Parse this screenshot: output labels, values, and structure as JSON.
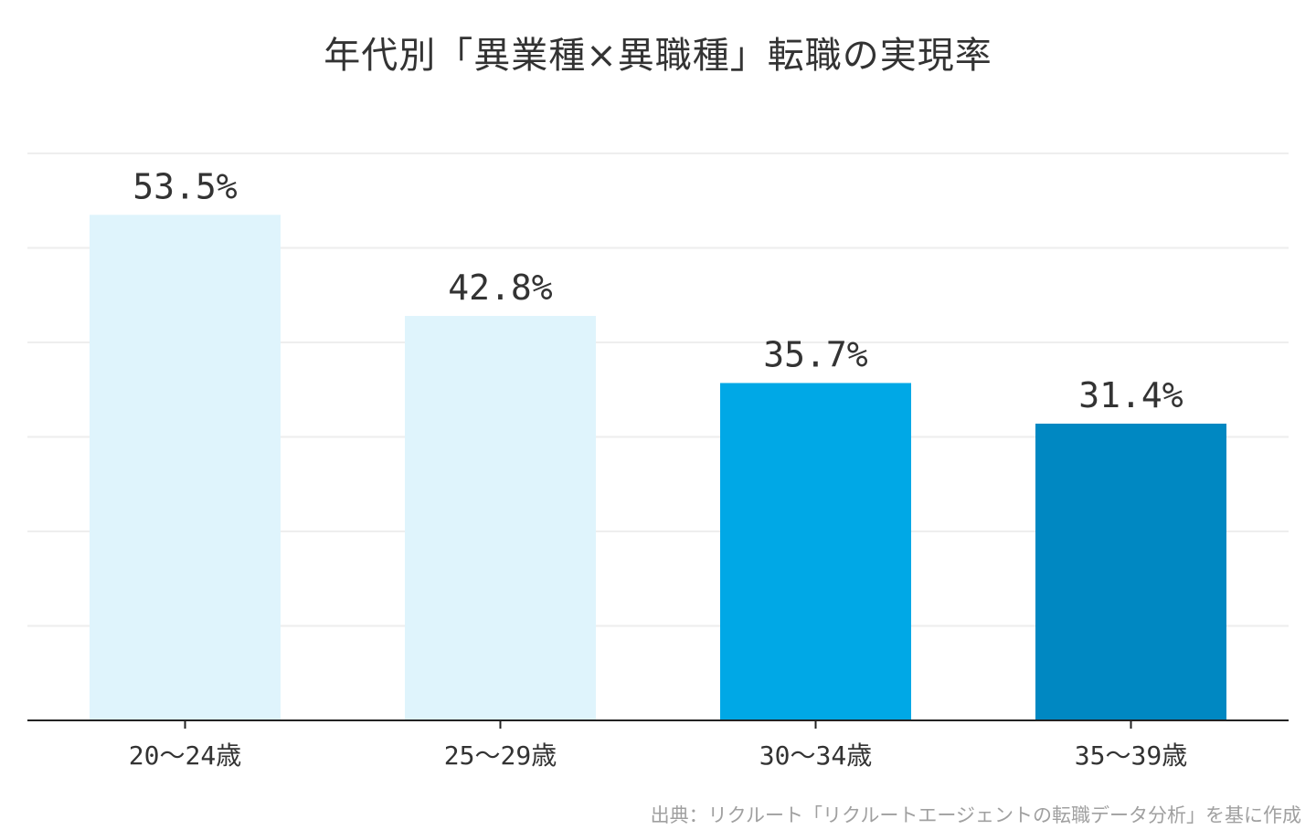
{
  "chart_data": {
    "type": "bar",
    "title": "年代別「異業種×異職種」転職の実現率",
    "categories": [
      "20〜24歳",
      "25〜29歳",
      "30〜34歳",
      "35〜39歳"
    ],
    "values": [
      53.5,
      42.8,
      35.7,
      31.4
    ],
    "value_labels": [
      "53.5%",
      "42.8%",
      "35.7%",
      "31.4%"
    ],
    "bar_colors": [
      "#dff4fc",
      "#dff4fc",
      "#00a8e6",
      "#0088c2"
    ],
    "xlabel": "",
    "ylabel": "",
    "ylim": [
      0,
      60
    ],
    "y_tick_labels_visible": false,
    "grid": true,
    "legend": "none",
    "grid_color": "#eeeeee",
    "axis_color": "#222222"
  },
  "source_note": "出典：リクルート「リクルートエージェントの転職データ分析」を基に作成"
}
